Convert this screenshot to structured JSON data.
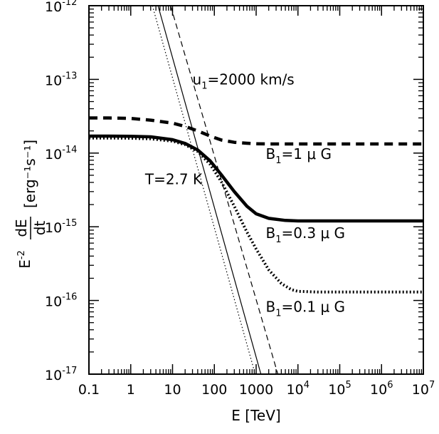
{
  "chart_data": {
    "type": "line",
    "title": "",
    "xlabel": "E [TeV]",
    "ylabel": "E⁻² dE/dt [erg⁻¹s⁻¹]",
    "ylabel_parts": {
      "prefix": "E",
      "prefix_exp": "-2",
      "numerator": "dE",
      "denominator": "dt",
      "units": "[erg⁻¹s⁻¹]"
    },
    "x_scale": "log",
    "y_scale": "log",
    "xlim": [
      0.1,
      10000000
    ],
    "ylim": [
      1e-17,
      1e-12
    ],
    "grid": false,
    "x_ticks": [
      {
        "value": 0.1,
        "label": "0.1"
      },
      {
        "value": 1,
        "label": "1"
      },
      {
        "value": 10,
        "label": "10"
      },
      {
        "value": 100,
        "label": "100"
      },
      {
        "value": 1000,
        "label": "1000"
      },
      {
        "value": 10000,
        "base": "10",
        "exp": "4"
      },
      {
        "value": 100000,
        "base": "10",
        "exp": "5"
      },
      {
        "value": 1000000,
        "base": "10",
        "exp": "6"
      },
      {
        "value": 10000000,
        "base": "10",
        "exp": "7"
      }
    ],
    "y_ticks": [
      {
        "value": 1e-17,
        "base": "10",
        "exp": "-17"
      },
      {
        "value": 1e-16,
        "base": "10",
        "exp": "-16"
      },
      {
        "value": 1e-15,
        "base": "10",
        "exp": "-15"
      },
      {
        "value": 1e-14,
        "base": "10",
        "exp": "-14"
      },
      {
        "value": 1e-13,
        "base": "10",
        "exp": "-13"
      },
      {
        "value": 1e-12,
        "base": "10",
        "exp": "-12"
      }
    ],
    "series": [
      {
        "style": "solid-thick",
        "x": [
          0.1,
          0.3,
          1,
          3,
          10,
          20,
          40,
          80,
          150,
          300,
          600,
          1000,
          2000,
          5000,
          10000,
          100000,
          1000000,
          10000000
        ],
        "y": [
          1.7e-14,
          1.7e-14,
          1.69e-14,
          1.66e-14,
          1.52e-14,
          1.35e-14,
          1.1e-14,
          7.8e-15,
          5e-15,
          3e-15,
          1.9e-15,
          1.5e-15,
          1.3e-15,
          1.22e-15,
          1.2e-15,
          1.2e-15,
          1.2e-15,
          1.2e-15
        ]
      },
      {
        "style": "dashed-thick",
        "x": [
          0.1,
          0.3,
          1,
          3,
          10,
          20,
          40,
          80,
          150,
          300,
          600,
          1000,
          2000,
          5000,
          10000,
          100000,
          1000000,
          10000000
        ],
        "y": [
          3e-14,
          3e-14,
          2.95e-14,
          2.8e-14,
          2.55e-14,
          2.3e-14,
          2e-14,
          1.7e-14,
          1.5e-14,
          1.4e-14,
          1.36e-14,
          1.34e-14,
          1.33e-14,
          1.33e-14,
          1.33e-14,
          1.33e-14,
          1.33e-14,
          1.33e-14
        ]
      },
      {
        "style": "dotted-thick",
        "x": [
          0.1,
          0.3,
          1,
          3,
          10,
          20,
          40,
          80,
          150,
          300,
          600,
          1000,
          2000,
          4000,
          7000,
          10000,
          30000,
          100000,
          1000000,
          10000000
        ],
        "y": [
          1.6e-14,
          1.6e-14,
          1.59e-14,
          1.56e-14,
          1.45e-14,
          1.3e-14,
          1.05e-14,
          7e-15,
          4e-15,
          1.9e-15,
          8.5e-16,
          5e-16,
          2.6e-16,
          1.7e-16,
          1.4e-16,
          1.33e-16,
          1.3e-16,
          1.3e-16,
          1.3e-16,
          1.3e-16
        ]
      },
      {
        "style": "solid-thin",
        "x": [
          4.5,
          1300
        ],
        "y": [
          1e-12,
          1e-17
        ]
      },
      {
        "style": "dashed-thin",
        "x": [
          9,
          3300
        ],
        "y": [
          1e-12,
          1e-17
        ]
      },
      {
        "style": "dotted-thin",
        "x": [
          3.3,
          950
        ],
        "y": [
          1e-12,
          1e-17
        ]
      }
    ],
    "annotations": [
      {
        "id": "u1",
        "sym": "u",
        "sub": "1",
        "rest": "=2000 km/s",
        "x": 30,
        "y": 8.5e-14
      },
      {
        "id": "b1",
        "sym": "B",
        "sub": "1",
        "rest": "=1 μ G",
        "x": 1700,
        "y": 8.3e-15
      },
      {
        "id": "b03",
        "sym": "B",
        "sub": "1",
        "rest": "=0.3 μ G",
        "x": 1700,
        "y": 7e-16
      },
      {
        "id": "b01",
        "sym": "B",
        "sub": "1",
        "rest": "=0.1 μ G",
        "x": 1700,
        "y": 7e-17
      },
      {
        "id": "temp",
        "sym": "T=2.7 K",
        "sub": "",
        "rest": "",
        "x": 2.2,
        "y": 3.8e-15
      }
    ]
  }
}
